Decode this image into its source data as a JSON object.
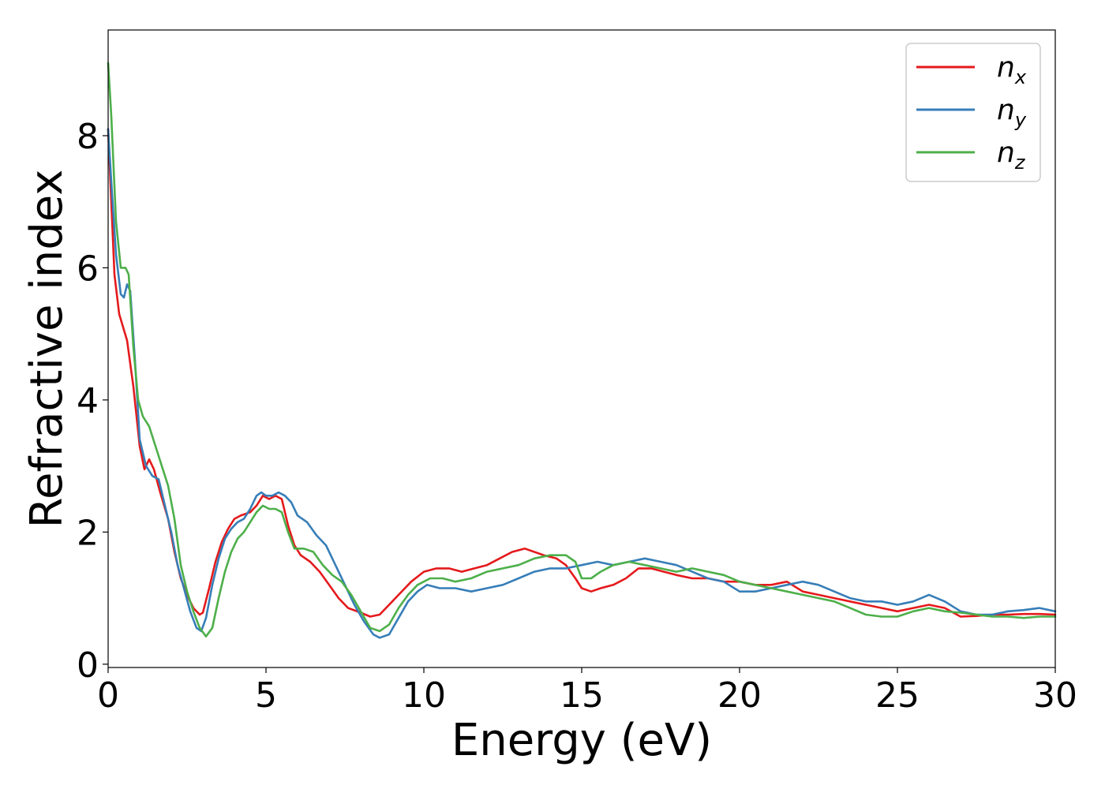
{
  "chart_data": {
    "type": "line",
    "xlabel": "Energy (eV)",
    "ylabel": "Refractive index",
    "xlim": [
      0,
      30
    ],
    "ylim": [
      -0.05,
      9.6
    ],
    "xticks": [
      0,
      5,
      10,
      15,
      20,
      25,
      30
    ],
    "yticks": [
      0,
      2,
      4,
      6,
      8
    ],
    "grid": false,
    "legend_position": "top-right",
    "series": [
      {
        "name": "n_x",
        "base": "n",
        "sub": "x",
        "color": "#e41a1c",
        "points": [
          [
            0,
            8.1
          ],
          [
            0.1,
            7.0
          ],
          [
            0.2,
            5.9
          ],
          [
            0.35,
            5.3
          ],
          [
            0.6,
            4.9
          ],
          [
            0.8,
            4.2
          ],
          [
            1.0,
            3.3
          ],
          [
            1.15,
            2.95
          ],
          [
            1.3,
            3.1
          ],
          [
            1.45,
            2.95
          ],
          [
            1.65,
            2.6
          ],
          [
            1.9,
            2.2
          ],
          [
            2.1,
            1.7
          ],
          [
            2.3,
            1.3
          ],
          [
            2.5,
            1.05
          ],
          [
            2.7,
            0.85
          ],
          [
            2.9,
            0.75
          ],
          [
            3.0,
            0.78
          ],
          [
            3.2,
            1.15
          ],
          [
            3.4,
            1.55
          ],
          [
            3.6,
            1.85
          ],
          [
            3.8,
            2.05
          ],
          [
            4.0,
            2.2
          ],
          [
            4.2,
            2.25
          ],
          [
            4.5,
            2.3
          ],
          [
            4.7,
            2.4
          ],
          [
            4.9,
            2.55
          ],
          [
            5.1,
            2.5
          ],
          [
            5.3,
            2.55
          ],
          [
            5.5,
            2.5
          ],
          [
            5.7,
            2.1
          ],
          [
            5.9,
            1.8
          ],
          [
            6.1,
            1.65
          ],
          [
            6.4,
            1.55
          ],
          [
            6.7,
            1.4
          ],
          [
            7.0,
            1.2
          ],
          [
            7.3,
            1.0
          ],
          [
            7.6,
            0.85
          ],
          [
            8.0,
            0.78
          ],
          [
            8.3,
            0.72
          ],
          [
            8.6,
            0.75
          ],
          [
            8.9,
            0.9
          ],
          [
            9.2,
            1.05
          ],
          [
            9.6,
            1.25
          ],
          [
            10.0,
            1.4
          ],
          [
            10.4,
            1.45
          ],
          [
            10.8,
            1.45
          ],
          [
            11.2,
            1.4
          ],
          [
            11.6,
            1.45
          ],
          [
            12.0,
            1.5
          ],
          [
            12.4,
            1.6
          ],
          [
            12.8,
            1.7
          ],
          [
            13.2,
            1.75
          ],
          [
            13.5,
            1.7
          ],
          [
            13.8,
            1.65
          ],
          [
            14.2,
            1.6
          ],
          [
            14.5,
            1.5
          ],
          [
            14.8,
            1.3
          ],
          [
            15.0,
            1.15
          ],
          [
            15.3,
            1.1
          ],
          [
            15.6,
            1.15
          ],
          [
            16.0,
            1.2
          ],
          [
            16.4,
            1.3
          ],
          [
            16.8,
            1.45
          ],
          [
            17.2,
            1.45
          ],
          [
            17.6,
            1.4
          ],
          [
            18.0,
            1.35
          ],
          [
            18.5,
            1.3
          ],
          [
            19.0,
            1.3
          ],
          [
            19.5,
            1.25
          ],
          [
            20.0,
            1.25
          ],
          [
            20.5,
            1.2
          ],
          [
            21.0,
            1.2
          ],
          [
            21.5,
            1.25
          ],
          [
            22.0,
            1.1
          ],
          [
            22.5,
            1.05
          ],
          [
            23.0,
            1.0
          ],
          [
            23.5,
            0.95
          ],
          [
            24.0,
            0.9
          ],
          [
            24.5,
            0.85
          ],
          [
            25.0,
            0.8
          ],
          [
            25.5,
            0.85
          ],
          [
            26.0,
            0.9
          ],
          [
            26.5,
            0.85
          ],
          [
            27.0,
            0.72
          ],
          [
            27.5,
            0.73
          ],
          [
            28.0,
            0.75
          ],
          [
            28.5,
            0.75
          ],
          [
            29.0,
            0.76
          ],
          [
            29.5,
            0.76
          ],
          [
            30.0,
            0.75
          ]
        ]
      },
      {
        "name": "n_y",
        "base": "n",
        "sub": "y",
        "color": "#377eb8",
        "points": [
          [
            0,
            8.1
          ],
          [
            0.1,
            7.3
          ],
          [
            0.25,
            6.2
          ],
          [
            0.4,
            5.6
          ],
          [
            0.5,
            5.55
          ],
          [
            0.6,
            5.75
          ],
          [
            0.7,
            5.65
          ],
          [
            0.85,
            4.6
          ],
          [
            1.0,
            3.4
          ],
          [
            1.2,
            3.0
          ],
          [
            1.4,
            2.85
          ],
          [
            1.6,
            2.8
          ],
          [
            1.8,
            2.4
          ],
          [
            2.0,
            2.0
          ],
          [
            2.2,
            1.5
          ],
          [
            2.4,
            1.15
          ],
          [
            2.6,
            0.8
          ],
          [
            2.8,
            0.55
          ],
          [
            2.95,
            0.5
          ],
          [
            3.1,
            0.7
          ],
          [
            3.3,
            1.2
          ],
          [
            3.5,
            1.6
          ],
          [
            3.7,
            1.9
          ],
          [
            3.9,
            2.05
          ],
          [
            4.1,
            2.15
          ],
          [
            4.3,
            2.2
          ],
          [
            4.5,
            2.35
          ],
          [
            4.7,
            2.55
          ],
          [
            4.85,
            2.6
          ],
          [
            5.0,
            2.55
          ],
          [
            5.2,
            2.55
          ],
          [
            5.4,
            2.6
          ],
          [
            5.6,
            2.55
          ],
          [
            5.8,
            2.45
          ],
          [
            6.0,
            2.25
          ],
          [
            6.3,
            2.15
          ],
          [
            6.6,
            1.95
          ],
          [
            6.9,
            1.8
          ],
          [
            7.2,
            1.5
          ],
          [
            7.5,
            1.2
          ],
          [
            7.8,
            0.9
          ],
          [
            8.1,
            0.65
          ],
          [
            8.4,
            0.45
          ],
          [
            8.6,
            0.4
          ],
          [
            8.9,
            0.45
          ],
          [
            9.2,
            0.7
          ],
          [
            9.5,
            0.95
          ],
          [
            9.8,
            1.1
          ],
          [
            10.1,
            1.2
          ],
          [
            10.5,
            1.15
          ],
          [
            11.0,
            1.15
          ],
          [
            11.5,
            1.1
          ],
          [
            12.0,
            1.15
          ],
          [
            12.5,
            1.2
          ],
          [
            13.0,
            1.3
          ],
          [
            13.5,
            1.4
          ],
          [
            14.0,
            1.45
          ],
          [
            14.5,
            1.45
          ],
          [
            15.0,
            1.5
          ],
          [
            15.5,
            1.55
          ],
          [
            16.0,
            1.5
          ],
          [
            16.5,
            1.55
          ],
          [
            17.0,
            1.6
          ],
          [
            17.5,
            1.55
          ],
          [
            18.0,
            1.5
          ],
          [
            18.5,
            1.4
          ],
          [
            19.0,
            1.3
          ],
          [
            19.5,
            1.25
          ],
          [
            20.0,
            1.1
          ],
          [
            20.5,
            1.1
          ],
          [
            21.0,
            1.15
          ],
          [
            21.5,
            1.2
          ],
          [
            22.0,
            1.25
          ],
          [
            22.5,
            1.2
          ],
          [
            23.0,
            1.1
          ],
          [
            23.5,
            1.0
          ],
          [
            24.0,
            0.95
          ],
          [
            24.5,
            0.95
          ],
          [
            25.0,
            0.9
          ],
          [
            25.5,
            0.95
          ],
          [
            26.0,
            1.05
          ],
          [
            26.5,
            0.95
          ],
          [
            27.0,
            0.8
          ],
          [
            27.5,
            0.75
          ],
          [
            28.0,
            0.75
          ],
          [
            28.5,
            0.8
          ],
          [
            29.0,
            0.82
          ],
          [
            29.5,
            0.85
          ],
          [
            30.0,
            0.8
          ]
        ]
      },
      {
        "name": "n_z",
        "base": "n",
        "sub": "z",
        "color": "#4daf4a",
        "points": [
          [
            0,
            9.1
          ],
          [
            0.1,
            8.3
          ],
          [
            0.25,
            6.7
          ],
          [
            0.4,
            6.0
          ],
          [
            0.55,
            6.0
          ],
          [
            0.65,
            5.9
          ],
          [
            0.8,
            4.8
          ],
          [
            0.95,
            4.0
          ],
          [
            1.1,
            3.75
          ],
          [
            1.3,
            3.6
          ],
          [
            1.5,
            3.3
          ],
          [
            1.7,
            3.0
          ],
          [
            1.9,
            2.7
          ],
          [
            2.1,
            2.2
          ],
          [
            2.3,
            1.5
          ],
          [
            2.5,
            1.1
          ],
          [
            2.7,
            0.8
          ],
          [
            2.9,
            0.55
          ],
          [
            3.1,
            0.42
          ],
          [
            3.3,
            0.55
          ],
          [
            3.5,
            1.0
          ],
          [
            3.7,
            1.4
          ],
          [
            3.9,
            1.7
          ],
          [
            4.1,
            1.9
          ],
          [
            4.3,
            2.0
          ],
          [
            4.5,
            2.15
          ],
          [
            4.7,
            2.3
          ],
          [
            4.9,
            2.4
          ],
          [
            5.1,
            2.35
          ],
          [
            5.3,
            2.35
          ],
          [
            5.5,
            2.3
          ],
          [
            5.7,
            2.0
          ],
          [
            5.9,
            1.75
          ],
          [
            6.2,
            1.75
          ],
          [
            6.5,
            1.7
          ],
          [
            6.8,
            1.5
          ],
          [
            7.1,
            1.35
          ],
          [
            7.4,
            1.25
          ],
          [
            7.7,
            1.05
          ],
          [
            8.0,
            0.8
          ],
          [
            8.3,
            0.55
          ],
          [
            8.6,
            0.5
          ],
          [
            8.9,
            0.6
          ],
          [
            9.2,
            0.85
          ],
          [
            9.5,
            1.05
          ],
          [
            9.8,
            1.2
          ],
          [
            10.2,
            1.3
          ],
          [
            10.6,
            1.3
          ],
          [
            11.0,
            1.25
          ],
          [
            11.5,
            1.3
          ],
          [
            12.0,
            1.4
          ],
          [
            12.5,
            1.45
          ],
          [
            13.0,
            1.5
          ],
          [
            13.5,
            1.6
          ],
          [
            14.0,
            1.65
          ],
          [
            14.5,
            1.65
          ],
          [
            14.8,
            1.55
          ],
          [
            15.0,
            1.3
          ],
          [
            15.3,
            1.3
          ],
          [
            15.6,
            1.4
          ],
          [
            16.0,
            1.5
          ],
          [
            16.5,
            1.55
          ],
          [
            17.0,
            1.5
          ],
          [
            17.5,
            1.45
          ],
          [
            18.0,
            1.4
          ],
          [
            18.5,
            1.45
          ],
          [
            19.0,
            1.4
          ],
          [
            19.5,
            1.35
          ],
          [
            20.0,
            1.25
          ],
          [
            20.5,
            1.2
          ],
          [
            21.0,
            1.15
          ],
          [
            21.5,
            1.1
          ],
          [
            22.0,
            1.05
          ],
          [
            22.5,
            1.0
          ],
          [
            23.0,
            0.95
          ],
          [
            23.5,
            0.85
          ],
          [
            24.0,
            0.75
          ],
          [
            24.5,
            0.72
          ],
          [
            25.0,
            0.72
          ],
          [
            25.5,
            0.8
          ],
          [
            26.0,
            0.85
          ],
          [
            26.5,
            0.8
          ],
          [
            27.0,
            0.78
          ],
          [
            27.5,
            0.75
          ],
          [
            28.0,
            0.72
          ],
          [
            28.5,
            0.72
          ],
          [
            29.0,
            0.7
          ],
          [
            29.5,
            0.72
          ],
          [
            30.0,
            0.72
          ]
        ]
      }
    ]
  }
}
